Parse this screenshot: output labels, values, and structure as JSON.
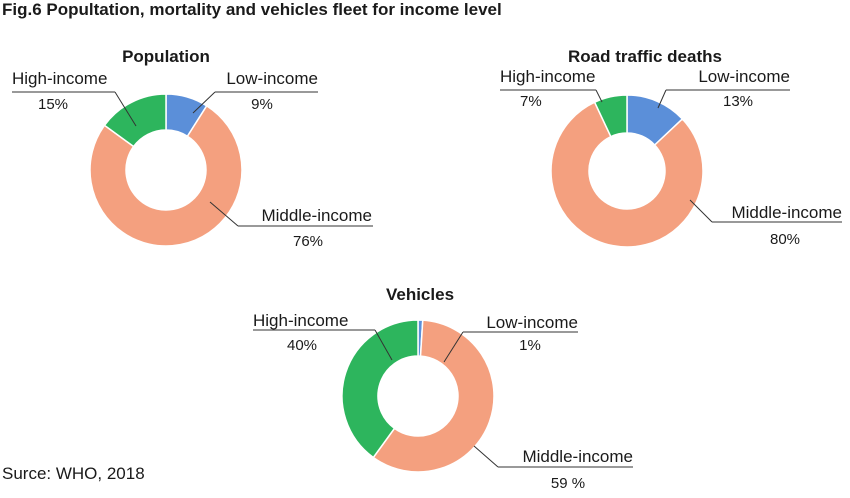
{
  "figure": {
    "title": "Fig.6 Popultation, mortality and vehicles fleet for income level",
    "source": "Surce: WHO, 2018"
  },
  "colors": {
    "low_income": "#5b8fd9",
    "middle_income": "#f4a07f",
    "high_income": "#2db55d",
    "stroke": "#ffffff",
    "leader": "#333333"
  },
  "chart_data": [
    {
      "type": "pie",
      "donut": true,
      "title": "Population",
      "slices": [
        {
          "label": "Low-income",
          "value": 9,
          "value_label": "9%"
        },
        {
          "label": "Middle-income",
          "value": 76,
          "value_label": "76%"
        },
        {
          "label": "High-income",
          "value": 15,
          "value_label": "15%"
        }
      ]
    },
    {
      "type": "pie",
      "donut": true,
      "title": "Road traffic deaths",
      "slices": [
        {
          "label": "Low-income",
          "value": 13,
          "value_label": "13%"
        },
        {
          "label": "Middle-income",
          "value": 80,
          "value_label": "80%"
        },
        {
          "label": "High-income",
          "value": 7,
          "value_label": "7%"
        }
      ]
    },
    {
      "type": "pie",
      "donut": true,
      "title": "Vehicles",
      "slices": [
        {
          "label": "Low-income",
          "value": 1,
          "value_label": "1%"
        },
        {
          "label": "Middle-income",
          "value": 59,
          "value_label": "59 %"
        },
        {
          "label": "High-income",
          "value": 40,
          "value_label": "40%"
        }
      ]
    }
  ]
}
